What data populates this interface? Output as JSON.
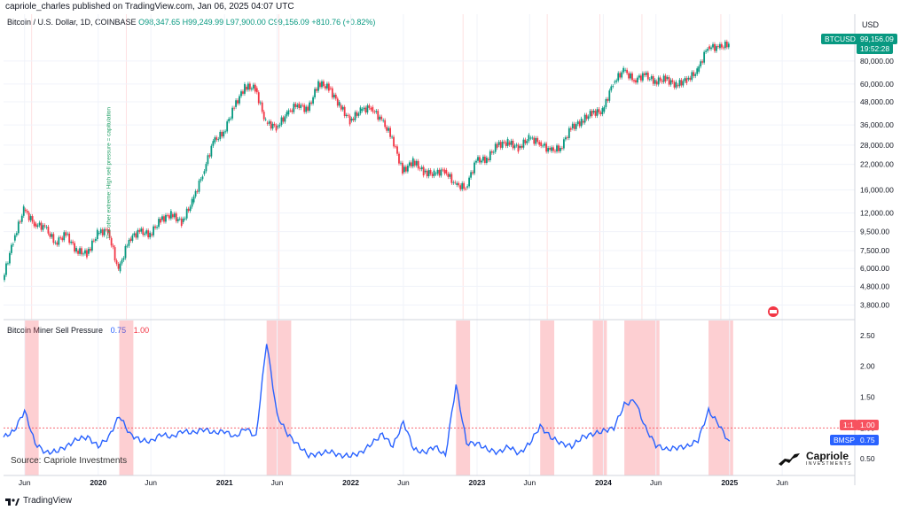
{
  "header": {
    "publisher_line": "capriole_charles published on TradingView.com, Jan 06, 2025 04:07 UTC"
  },
  "price_legend": {
    "symbol": "Bitcoin / U.S. Dollar, 1D, COINBASE",
    "open": "O98,347.65",
    "high": "H99,249.99",
    "low": "L97,900.00",
    "close": "C99,156.09",
    "change": "+810.76 (+0.82%)"
  },
  "indicator_legend": {
    "name": "Bitcoin Miner Sell Pressure",
    "value1": "0.75",
    "value2": "1.00"
  },
  "axis_currency": "USD",
  "price_tag": {
    "symbol": "BTCUSD",
    "price": "99,156.09",
    "countdown": "19:52:28"
  },
  "indicator_tags": [
    {
      "label": "1:1",
      "value": "1.00",
      "color": "#f7525f"
    },
    {
      "label": "BMSP",
      "value": "0.75",
      "color": "#2962ff"
    }
  ],
  "annotation": "The other extreme: High sell pressure = capitulation",
  "source": "Source: Capriole Investments",
  "brand": {
    "name": "Capriole",
    "sub": "INVESTMENTS"
  },
  "footer": {
    "logo_text": "TradingView"
  },
  "chart_data": [
    {
      "type": "candlestick",
      "title": "Bitcoin / U.S. Dollar, 1D, COINBASE",
      "y_scale": "log",
      "y_ticks": [
        "3,800.00",
        "4,800.00",
        "6,000.00",
        "7,500.00",
        "9,500.00",
        "12,000.00",
        "16,000.00",
        "22,000.00",
        "28,000.00",
        "36,000.00",
        "48,000.00",
        "60,000.00",
        "80,000.00"
      ],
      "last_price": 99156.09,
      "x_ticks": [
        "Jun",
        "2020",
        "Jun",
        "2021",
        "Jun",
        "2022",
        "Jun",
        "2023",
        "Jun",
        "2024",
        "Jun",
        "2025",
        "Jun"
      ],
      "series": [
        {
          "name": "BTCUSD",
          "points": [
            [
              "2019-04",
              5200
            ],
            [
              "2019-05",
              8500
            ],
            [
              "2019-06",
              12500
            ],
            [
              "2019-07",
              10500
            ],
            [
              "2019-08",
              10000
            ],
            [
              "2019-09",
              8300
            ],
            [
              "2019-10",
              9200
            ],
            [
              "2019-11",
              7500
            ],
            [
              "2019-12",
              7200
            ],
            [
              "2020-01",
              9300
            ],
            [
              "2020-02",
              9700
            ],
            [
              "2020-03",
              5800
            ],
            [
              "2020-04",
              8700
            ],
            [
              "2020-05",
              9500
            ],
            [
              "2020-06",
              9200
            ],
            [
              "2020-07",
              11000
            ],
            [
              "2020-08",
              11800
            ],
            [
              "2020-09",
              10700
            ],
            [
              "2020-10",
              13700
            ],
            [
              "2020-11",
              19500
            ],
            [
              "2020-12",
              29000
            ],
            [
              "2021-01",
              33000
            ],
            [
              "2021-02",
              45000
            ],
            [
              "2021-03",
              58000
            ],
            [
              "2021-04",
              57000
            ],
            [
              "2021-05",
              37000
            ],
            [
              "2021-06",
              35000
            ],
            [
              "2021-07",
              41000
            ],
            [
              "2021-08",
              47000
            ],
            [
              "2021-09",
              43000
            ],
            [
              "2021-10",
              61000
            ],
            [
              "2021-11",
              57000
            ],
            [
              "2021-12",
              46000
            ],
            [
              "2022-01",
              38000
            ],
            [
              "2022-02",
              43000
            ],
            [
              "2022-03",
              45000
            ],
            [
              "2022-04",
              38000
            ],
            [
              "2022-05",
              31000
            ],
            [
              "2022-06",
              20000
            ],
            [
              "2022-07",
              23000
            ],
            [
              "2022-08",
              20000
            ],
            [
              "2022-09",
              19500
            ],
            [
              "2022-10",
              20500
            ],
            [
              "2022-11",
              17000
            ],
            [
              "2022-12",
              16500
            ],
            [
              "2023-01",
              23000
            ],
            [
              "2023-02",
              23500
            ],
            [
              "2023-03",
              28000
            ],
            [
              "2023-04",
              29000
            ],
            [
              "2023-05",
              27000
            ],
            [
              "2023-06",
              30500
            ],
            [
              "2023-07",
              29000
            ],
            [
              "2023-08",
              26000
            ],
            [
              "2023-09",
              27000
            ],
            [
              "2023-10",
              34500
            ],
            [
              "2023-11",
              37700
            ],
            [
              "2023-12",
              42000
            ],
            [
              "2024-01",
              42500
            ],
            [
              "2024-02",
              61000
            ],
            [
              "2024-03",
              71000
            ],
            [
              "2024-04",
              63000
            ],
            [
              "2024-05",
              67000
            ],
            [
              "2024-06",
              62000
            ],
            [
              "2024-07",
              64000
            ],
            [
              "2024-08",
              59000
            ],
            [
              "2024-09",
              63500
            ],
            [
              "2024-10",
              70000
            ],
            [
              "2024-11",
              96000
            ],
            [
              "2024-12",
              94000
            ],
            [
              "2025-01",
              99156
            ]
          ]
        }
      ]
    },
    {
      "type": "line",
      "title": "Bitcoin Miner Sell Pressure",
      "y_ticks": [
        0.5,
        1.0,
        1.5,
        2.0,
        2.5
      ],
      "ylim": [
        0.3,
        2.6
      ],
      "reference_line": 1.0,
      "series": [
        {
          "name": "BMSP",
          "points": [
            [
              "2019-04",
              0.85
            ],
            [
              "2019-05",
              0.95
            ],
            [
              "2019-06",
              1.28
            ],
            [
              "2019-07",
              0.75
            ],
            [
              "2019-08",
              0.6
            ],
            [
              "2019-09",
              0.62
            ],
            [
              "2019-10",
              0.7
            ],
            [
              "2019-11",
              0.82
            ],
            [
              "2019-12",
              0.85
            ],
            [
              "2020-01",
              0.7
            ],
            [
              "2020-02",
              0.85
            ],
            [
              "2020-03",
              1.2
            ],
            [
              "2020-04",
              0.9
            ],
            [
              "2020-05",
              0.8
            ],
            [
              "2020-06",
              0.78
            ],
            [
              "2020-07",
              0.9
            ],
            [
              "2020-08",
              0.85
            ],
            [
              "2020-09",
              0.95
            ],
            [
              "2020-10",
              0.92
            ],
            [
              "2020-11",
              0.98
            ],
            [
              "2020-12",
              0.92
            ],
            [
              "2021-01",
              0.95
            ],
            [
              "2021-02",
              0.85
            ],
            [
              "2021-03",
              1.0
            ],
            [
              "2021-04",
              0.85
            ],
            [
              "2021-05",
              2.4
            ],
            [
              "2021-06",
              1.2
            ],
            [
              "2021-07",
              0.9
            ],
            [
              "2021-08",
              0.72
            ],
            [
              "2021-09",
              0.55
            ],
            [
              "2021-10",
              0.58
            ],
            [
              "2021-11",
              0.62
            ],
            [
              "2021-12",
              0.55
            ],
            [
              "2022-01",
              0.55
            ],
            [
              "2022-02",
              0.6
            ],
            [
              "2022-03",
              0.75
            ],
            [
              "2022-04",
              0.9
            ],
            [
              "2022-05",
              0.7
            ],
            [
              "2022-06",
              1.1
            ],
            [
              "2022-07",
              0.65
            ],
            [
              "2022-08",
              0.6
            ],
            [
              "2022-09",
              0.7
            ],
            [
              "2022-10",
              0.55
            ],
            [
              "2022-11",
              1.7
            ],
            [
              "2022-12",
              0.75
            ],
            [
              "2023-01",
              0.75
            ],
            [
              "2023-02",
              0.65
            ],
            [
              "2023-03",
              0.6
            ],
            [
              "2023-04",
              0.7
            ],
            [
              "2023-05",
              0.58
            ],
            [
              "2023-06",
              0.75
            ],
            [
              "2023-07",
              1.03
            ],
            [
              "2023-08",
              0.85
            ],
            [
              "2023-09",
              0.75
            ],
            [
              "2023-10",
              0.7
            ],
            [
              "2023-11",
              0.85
            ],
            [
              "2023-12",
              0.9
            ],
            [
              "2024-01",
              0.95
            ],
            [
              "2024-02",
              1.0
            ],
            [
              "2024-03",
              1.38
            ],
            [
              "2024-04",
              1.45
            ],
            [
              "2024-05",
              1.0
            ],
            [
              "2024-06",
              0.72
            ],
            [
              "2024-07",
              0.65
            ],
            [
              "2024-08",
              0.68
            ],
            [
              "2024-09",
              0.7
            ],
            [
              "2024-10",
              0.8
            ],
            [
              "2024-11",
              1.28
            ],
            [
              "2024-12",
              1.05
            ],
            [
              "2025-01",
              0.75
            ]
          ]
        }
      ],
      "highlight_periods": [
        [
          "2019-06",
          "2019-07"
        ],
        [
          "2020-03",
          "2020-04"
        ],
        [
          "2021-05",
          "2021-07"
        ],
        [
          "2022-11",
          "2022-12"
        ],
        [
          "2023-07",
          "2023-08"
        ],
        [
          "2023-12",
          "2024-01"
        ],
        [
          "2024-03",
          "2024-06"
        ],
        [
          "2024-11",
          "2025-01"
        ]
      ]
    }
  ]
}
